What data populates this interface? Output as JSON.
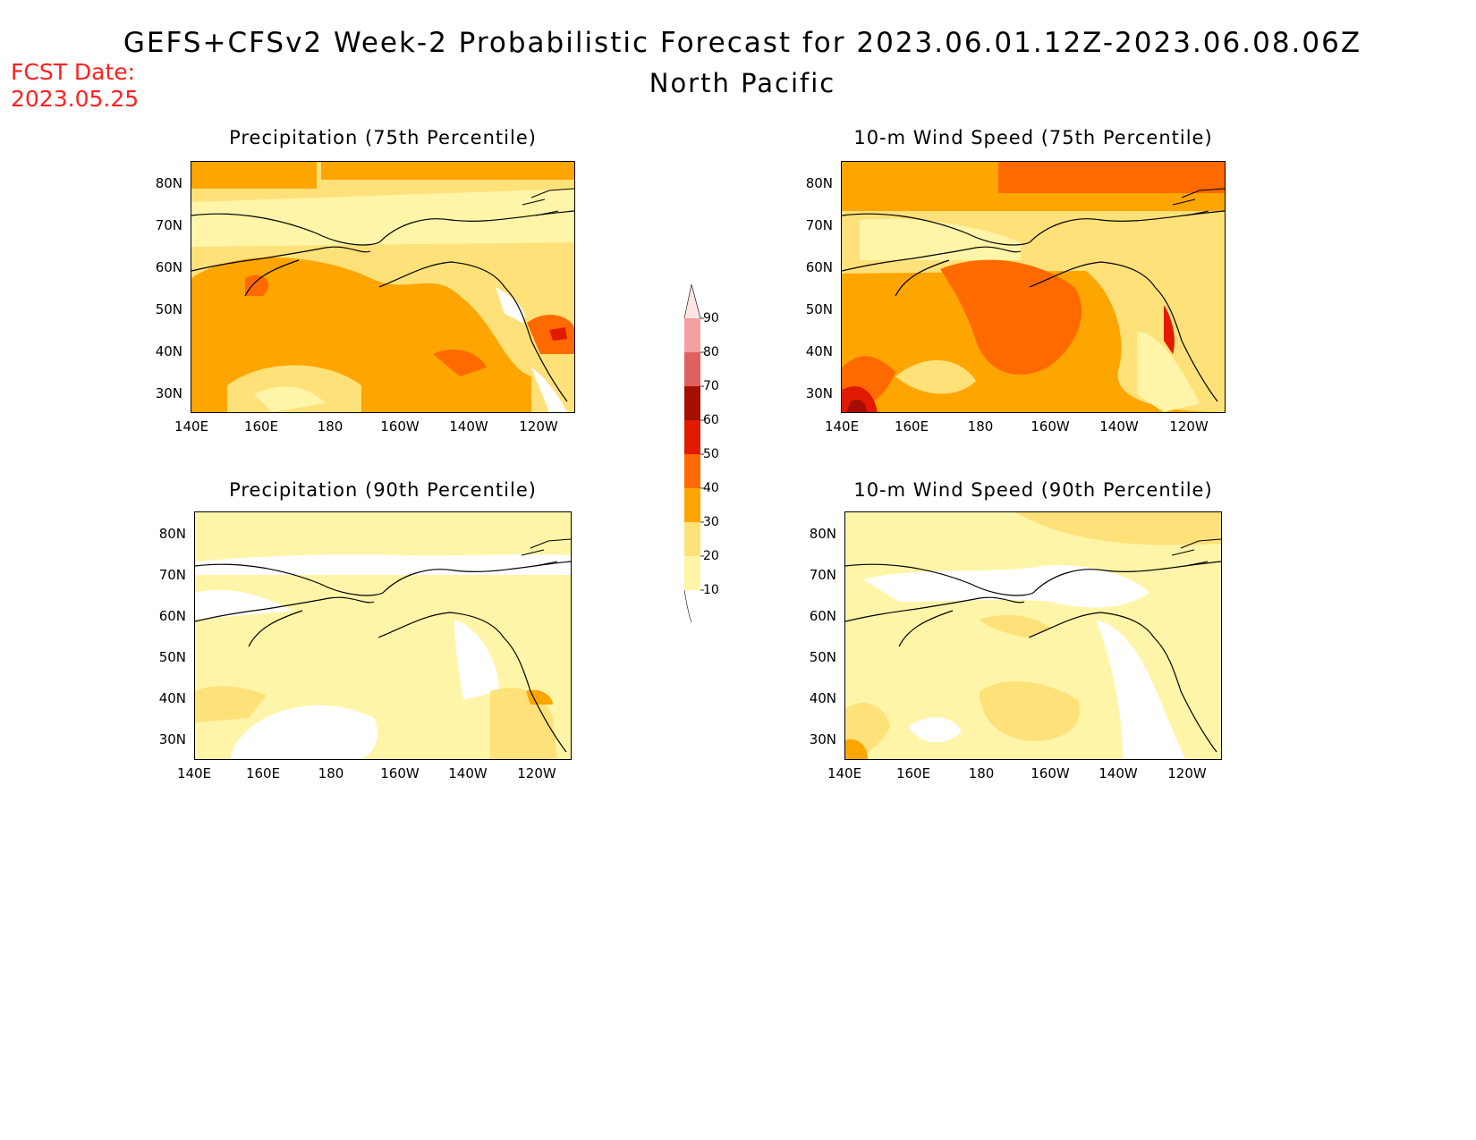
{
  "header": {
    "title": "GEFS+CFSv2 Week-2 Probabilistic Forecast for 2023.06.01.12Z-2023.06.08.06Z",
    "subtitle": "North Pacific",
    "fcst_label": "FCST Date:",
    "fcst_date": "2023.05.25"
  },
  "colors": {
    "bin_10_20": "#fff5a8",
    "bin_20_30": "#ffe17a",
    "bin_30_40": "#ffa500",
    "bin_40_50": "#ff6a00",
    "bin_50_60": "#e21a00",
    "bin_60_70": "#a50f00",
    "bin_70_80": "#e06060",
    "bin_80_90": "#f4a0a0",
    "bin_90_100": "#ffe4e4",
    "coast": "#000000"
  },
  "axes": {
    "lat_labels": [
      "80N",
      "70N",
      "60N",
      "50N",
      "40N",
      "30N"
    ],
    "lon_labels": [
      "140E",
      "160E",
      "180",
      "160W",
      "140W",
      "120W"
    ]
  },
  "panels": [
    {
      "title": "Precipitation (75th Percentile)",
      "base_color": "bin_20_30"
    },
    {
      "title": "10-m Wind Speed (75th Percentile)",
      "base_color": "bin_30_40"
    },
    {
      "title": "Precipitation (90th Percentile)",
      "base_color": "bin_10_20"
    },
    {
      "title": "10-m Wind Speed (90th Percentile)",
      "base_color": "bin_10_20"
    }
  ],
  "colorbar": {
    "labels": [
      "90",
      "80",
      "70",
      "60",
      "50",
      "40",
      "30",
      "20",
      "10"
    ]
  }
}
